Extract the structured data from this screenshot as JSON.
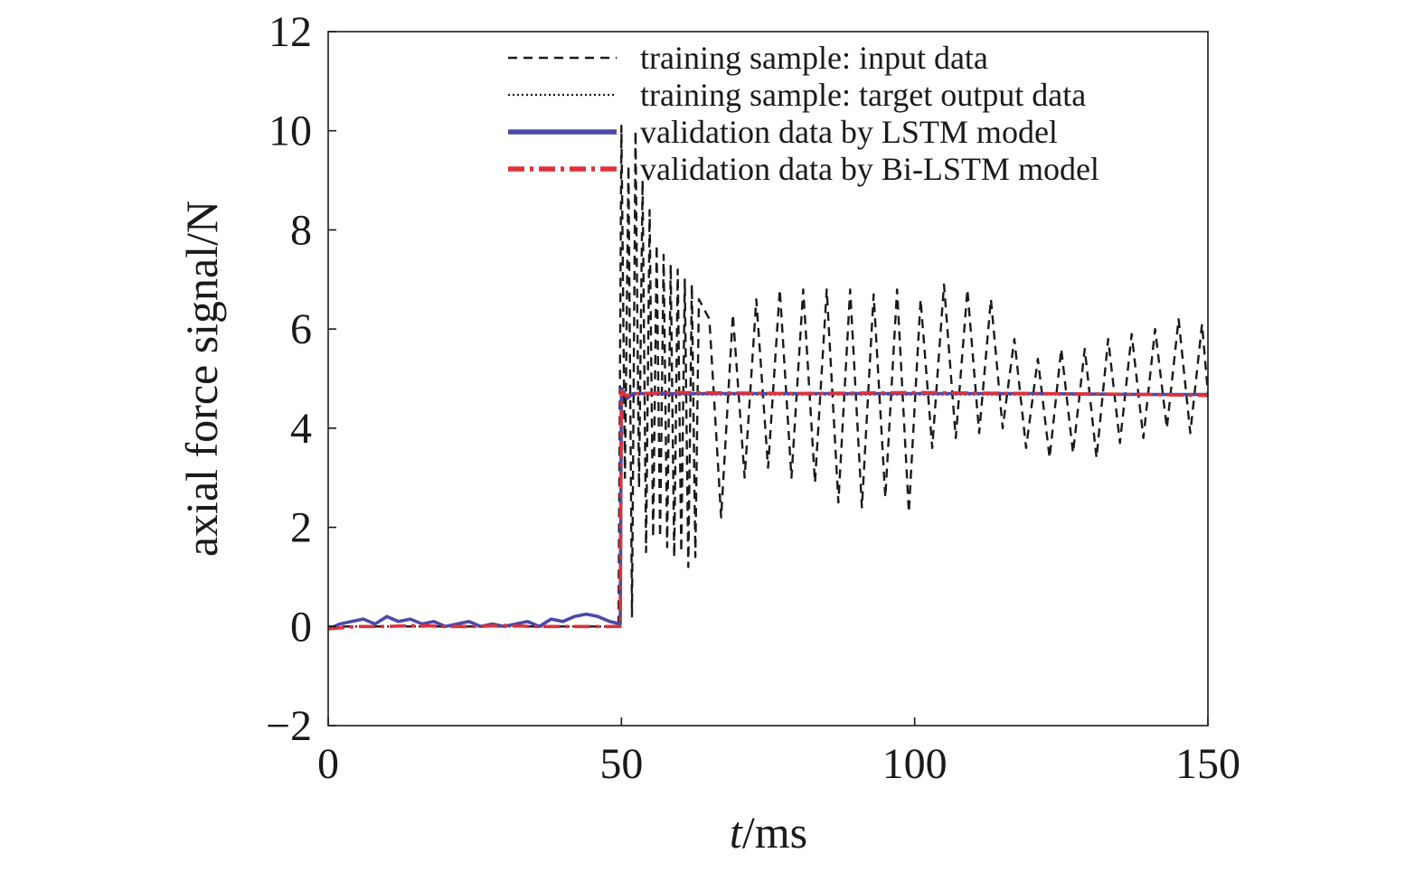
{
  "chart_data": {
    "type": "line",
    "title": "",
    "xlabel": "t/ms",
    "xlabel_italic": "t",
    "xlabel_rest": "/ms",
    "ylabel": "axial force signal/N",
    "xlim": [
      0,
      150
    ],
    "ylim": [
      -2,
      12
    ],
    "x_ticks": [
      0,
      50,
      100,
      150
    ],
    "y_ticks": [
      -2,
      0,
      2,
      4,
      6,
      8,
      10,
      12
    ],
    "x_tick_labels": [
      "0",
      "50",
      "100",
      "150"
    ],
    "y_tick_labels": [
      "−2",
      "0",
      "2",
      "4",
      "6",
      "8",
      "10",
      "12"
    ],
    "grid": false,
    "legend_position": "top-right",
    "colors": {
      "input": "#1a1a1a",
      "target": "#1a1a1a",
      "lstm": "#4a4aa8",
      "bilstm": "#e0303a"
    },
    "series": [
      {
        "name": "training sample: input data",
        "style": "dashed",
        "x": [
          0,
          10,
          20,
          30,
          40,
          49.5,
          50,
          50.6,
          51.2,
          51.8,
          52.4,
          53,
          53.6,
          54.2,
          54.8,
          55.4,
          56,
          56.6,
          57.2,
          57.8,
          58.4,
          59,
          59.6,
          60.2,
          60.8,
          61.4,
          62,
          62.6,
          63.2,
          65,
          67,
          69,
          71,
          73,
          75,
          77,
          79,
          81,
          83,
          85,
          87,
          89,
          91,
          93,
          95,
          97,
          99,
          101,
          103,
          105,
          107,
          109,
          111,
          113,
          115,
          117,
          119,
          121,
          123,
          125,
          127,
          129,
          131,
          133,
          135,
          137,
          139,
          141,
          143,
          145,
          147,
          149,
          150
        ],
        "y": [
          0,
          0,
          0,
          0,
          0,
          0,
          10.1,
          3.0,
          9.3,
          0.2,
          10.0,
          2.8,
          9.0,
          1.5,
          8.4,
          1.8,
          7.7,
          1.8,
          7.5,
          1.6,
          7.3,
          1.4,
          7.2,
          1.5,
          7.0,
          1.2,
          6.9,
          1.4,
          6.6,
          6.2,
          2.2,
          6.3,
          3.0,
          6.6,
          3.2,
          6.8,
          3.0,
          6.8,
          2.9,
          6.8,
          2.5,
          6.8,
          2.4,
          6.7,
          2.6,
          6.8,
          2.3,
          6.6,
          3.6,
          6.9,
          3.8,
          6.8,
          3.9,
          6.6,
          4.0,
          5.8,
          3.6,
          5.4,
          3.4,
          5.6,
          3.5,
          5.6,
          3.4,
          5.8,
          3.7,
          5.9,
          3.8,
          6.0,
          4.0,
          6.2,
          3.9,
          6.1,
          4.7
        ]
      },
      {
        "name": "training sample: target output data",
        "style": "dotted",
        "x": [
          0,
          49.8,
          50,
          50.5,
          150
        ],
        "y": [
          0,
          0,
          4.7,
          4.68,
          4.68
        ]
      },
      {
        "name": "validation data by LSTM model",
        "style": "solid",
        "x": [
          0,
          2,
          4,
          6,
          8,
          10,
          12,
          14,
          16,
          18,
          20,
          22,
          24,
          26,
          28,
          30,
          32,
          34,
          36,
          38,
          40,
          42,
          44,
          46,
          48,
          49.8,
          50,
          51,
          52,
          60,
          80,
          100,
          120,
          140,
          150
        ],
        "y": [
          -0.05,
          0.05,
          0.1,
          0.15,
          0.05,
          0.2,
          0.1,
          0.15,
          0.05,
          0.1,
          0.0,
          0.05,
          0.1,
          0.0,
          0.05,
          0.0,
          0.05,
          0.1,
          0.0,
          0.15,
          0.1,
          0.2,
          0.25,
          0.2,
          0.1,
          0.05,
          4.8,
          4.6,
          4.7,
          4.7,
          4.7,
          4.7,
          4.7,
          4.68,
          4.68
        ]
      },
      {
        "name": "validation data by Bi-LSTM model",
        "style": "dashdot",
        "x": [
          0,
          5,
          10,
          15,
          20,
          25,
          30,
          35,
          40,
          45,
          49.8,
          50,
          50.8,
          52,
          60,
          80,
          100,
          120,
          140,
          150
        ],
        "y": [
          -0.05,
          0.0,
          0.0,
          0.02,
          0.0,
          0.0,
          0.02,
          0.0,
          0.0,
          0.0,
          0.0,
          4.75,
          4.65,
          4.7,
          4.72,
          4.7,
          4.72,
          4.7,
          4.68,
          4.66
        ]
      }
    ]
  }
}
